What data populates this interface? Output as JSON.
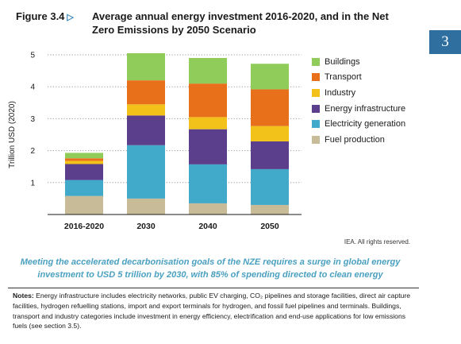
{
  "header": {
    "figure_label": "Figure 3.4",
    "title": "Average annual energy investment 2016-2020, and in the Net Zero Emissions by 2050 Scenario",
    "chapter": "3"
  },
  "chart_data": {
    "type": "bar",
    "stacked": true,
    "categories": [
      "2016-2020",
      "2030",
      "2040",
      "2050"
    ],
    "ylabel": "Trillion USD (2020)",
    "ylim": [
      0,
      5
    ],
    "yticks": [
      1,
      2,
      3,
      4,
      5
    ],
    "grid": true,
    "legend_position": "right",
    "series": [
      {
        "name": "Fuel production",
        "color": "#c8bc98",
        "values": [
          0.58,
          0.5,
          0.35,
          0.3
        ]
      },
      {
        "name": "Electricity generation",
        "color": "#41a9c9",
        "values": [
          0.5,
          1.67,
          1.22,
          1.12
        ]
      },
      {
        "name": "Energy infrastructure",
        "color": "#5b3f8c",
        "values": [
          0.5,
          0.93,
          1.1,
          0.87
        ]
      },
      {
        "name": "Industry",
        "color": "#f2c21a",
        "values": [
          0.1,
          0.35,
          0.38,
          0.48
        ]
      },
      {
        "name": "Transport",
        "color": "#e8701a",
        "values": [
          0.08,
          0.75,
          1.05,
          1.15
        ]
      },
      {
        "name": "Buildings",
        "color": "#8fcc5a",
        "values": [
          0.17,
          0.85,
          0.8,
          0.8
        ]
      }
    ]
  },
  "credit": "IEA. All rights reserved.",
  "caption": "Meeting the accelerated decarbonisation goals of the NZE requires a surge in global energy investment to USD 5 trillion by 2030, with 85% of spending directed to clean energy",
  "notes": {
    "label": "Notes:",
    "text": "Energy infrastructure includes electricity networks, public EV charging, CO₂ pipelines and storage facilities, direct air capture facilities, hydrogen refuelling stations, import and export terminals for hydrogen, and fossil fuel pipelines and terminals. Buildings, transport and industry categories include investment in energy efficiency, electrification and end-use applications for low emissions fuels (see section 3.5)."
  }
}
